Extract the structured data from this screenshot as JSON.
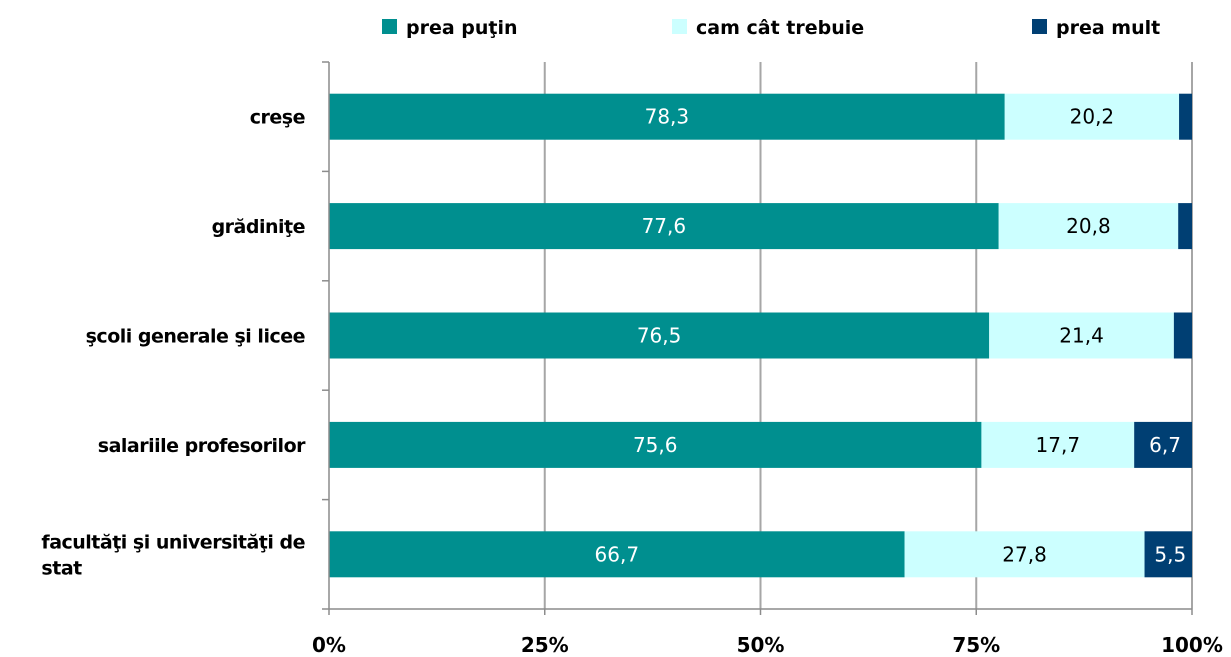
{
  "chart_data": {
    "type": "bar",
    "orientation": "horizontal",
    "stacked": true,
    "percent": true,
    "categories": [
      "creşe",
      "grădiniţe",
      "şcoli generale şi licee",
      "salariile profesorilor",
      "facultăţi şi universităţi de stat"
    ],
    "series": [
      {
        "name": "prea puţin",
        "color": "#008f8f",
        "values": [
          78.3,
          77.6,
          76.5,
          75.6,
          66.7
        ],
        "labels": [
          "78,3",
          "77,6",
          "76,5",
          "75,6",
          "66,7"
        ]
      },
      {
        "name": "cam cât trebuie",
        "color": "#ccffff",
        "values": [
          20.2,
          20.8,
          21.4,
          17.7,
          27.8
        ],
        "labels": [
          "20,2",
          "20,8",
          "21,4",
          "17,7",
          "27,8"
        ]
      },
      {
        "name": "prea mult",
        "color": "#003f73",
        "values": [
          1.5,
          1.6,
          2.1,
          6.7,
          5.5
        ],
        "labels": [
          "",
          "",
          "",
          "6,7",
          "5,5"
        ]
      }
    ],
    "xlim": [
      0,
      100
    ],
    "xticks": [
      "0%",
      "25%",
      "50%",
      "75%",
      "100%"
    ],
    "grid": true,
    "legend_position": "top"
  }
}
